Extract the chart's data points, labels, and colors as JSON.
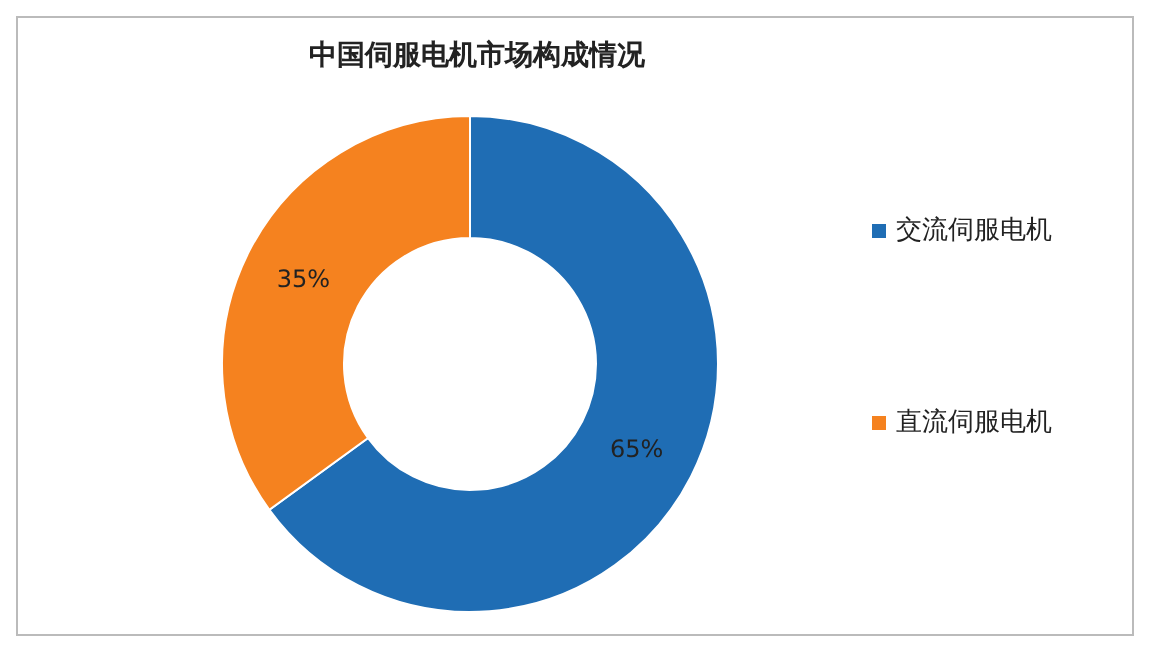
{
  "chart_data": {
    "type": "donut",
    "title": "中国伺服电机市场构成情况",
    "categories": [
      "交流伺服电机",
      "直流伺服电机"
    ],
    "values": [
      65,
      35
    ],
    "colors": [
      "#1f6db4",
      "#f5821f"
    ],
    "value_labels": [
      "65%",
      "35%"
    ],
    "legend": "right"
  }
}
